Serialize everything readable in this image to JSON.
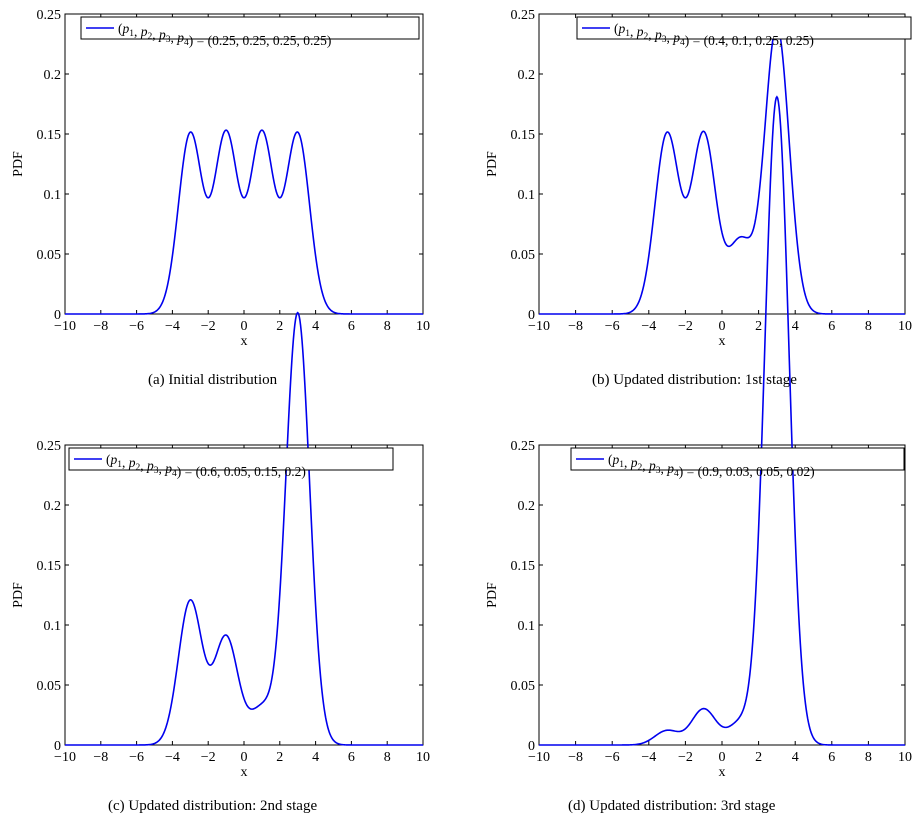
{
  "colors": {
    "curve": "#0000ee",
    "axis": "#000000",
    "background": "#ffffff"
  },
  "chart_data": [
    {
      "type": "line",
      "caption": "(a) Initial distribution",
      "xlabel": "x",
      "ylabel": "PDF",
      "xlim": [
        -10,
        10
      ],
      "ylim": [
        0,
        0.25
      ],
      "xticks": [
        -10,
        -8,
        -6,
        -4,
        -2,
        0,
        2,
        4,
        6,
        8,
        10
      ],
      "yticks": [
        0,
        0.05,
        0.1,
        0.15,
        0.2,
        0.25
      ],
      "legend_position": "top",
      "series": [
        {
          "name": "(p1, p2, p3, p4) = (0.25, 0.25, 0.25, 0.25)",
          "legend_lhs": "(p1, p2, p3, p4)",
          "legend_rhs": "= (0.25, 0.25, 0.25, 0.25)",
          "weights": [
            0.25,
            0.25,
            0.25,
            0.25
          ]
        }
      ],
      "means": [
        -3,
        -1,
        1,
        3
      ],
      "sigma": 0.665
    },
    {
      "type": "line",
      "caption": "(b) Updated distribution: 1st stage",
      "xlabel": "x",
      "ylabel": "PDF",
      "xlim": [
        -10,
        10
      ],
      "ylim": [
        0,
        0.25
      ],
      "xticks": [
        -10,
        -8,
        -6,
        -4,
        -2,
        0,
        2,
        4,
        6,
        8,
        10
      ],
      "yticks": [
        0,
        0.05,
        0.1,
        0.15,
        0.2,
        0.25
      ],
      "legend_position": "top",
      "series": [
        {
          "name": "(p1, p2, p3, p4) = (0.4, 0.1, 0.25, 0.25)",
          "legend_lhs": "(p1, p2, p3, p4)",
          "legend_rhs": "= (0.4, 0.1, 0.25, 0.25)",
          "weights": [
            0.25,
            0.25,
            0.1,
            0.4
          ]
        }
      ],
      "means": [
        -3,
        -1,
        1,
        3
      ],
      "sigma": 0.665
    },
    {
      "type": "line",
      "caption": "(c) Updated distribution: 2nd stage",
      "xlabel": "x",
      "ylabel": "PDF",
      "xlim": [
        -10,
        10
      ],
      "ylim": [
        0,
        0.25
      ],
      "xticks": [
        -10,
        -8,
        -6,
        -4,
        -2,
        0,
        2,
        4,
        6,
        8,
        10
      ],
      "yticks": [
        0,
        0.05,
        0.1,
        0.15,
        0.2,
        0.25
      ],
      "legend_position": "top",
      "series": [
        {
          "name": "(p1, p2, p3, p4) = (0.6, 0.05, 0.15, 0.2)",
          "legend_lhs": "(p1, p2, p3, p4)",
          "legend_rhs": "= (0.6, 0.05, 0.15, 0.2)",
          "weights": [
            0.2,
            0.15,
            0.05,
            0.6
          ]
        }
      ],
      "means": [
        -3,
        -1,
        1,
        3
      ],
      "sigma": 0.665
    },
    {
      "type": "line",
      "caption": "(d) Updated distribution: 3rd stage",
      "xlabel": "x",
      "ylabel": "PDF",
      "xlim": [
        -10,
        10
      ],
      "ylim": [
        0,
        0.25
      ],
      "xticks": [
        -10,
        -8,
        -6,
        -4,
        -2,
        0,
        2,
        4,
        6,
        8,
        10
      ],
      "yticks": [
        0,
        0.05,
        0.1,
        0.15,
        0.2,
        0.25
      ],
      "legend_position": "top",
      "series": [
        {
          "name": "(p1, p2, p3, p4) = (0.9, 0.03, 0.05, 0.02)",
          "legend_lhs": "(p1, p2, p3, p4)",
          "legend_rhs": "= (0.9, 0.03, 0.05, 0.02)",
          "weights": [
            0.02,
            0.05,
            0.03,
            0.9
          ]
        }
      ],
      "means": [
        -3,
        -1,
        1,
        3
      ],
      "sigma": 0.665
    }
  ]
}
